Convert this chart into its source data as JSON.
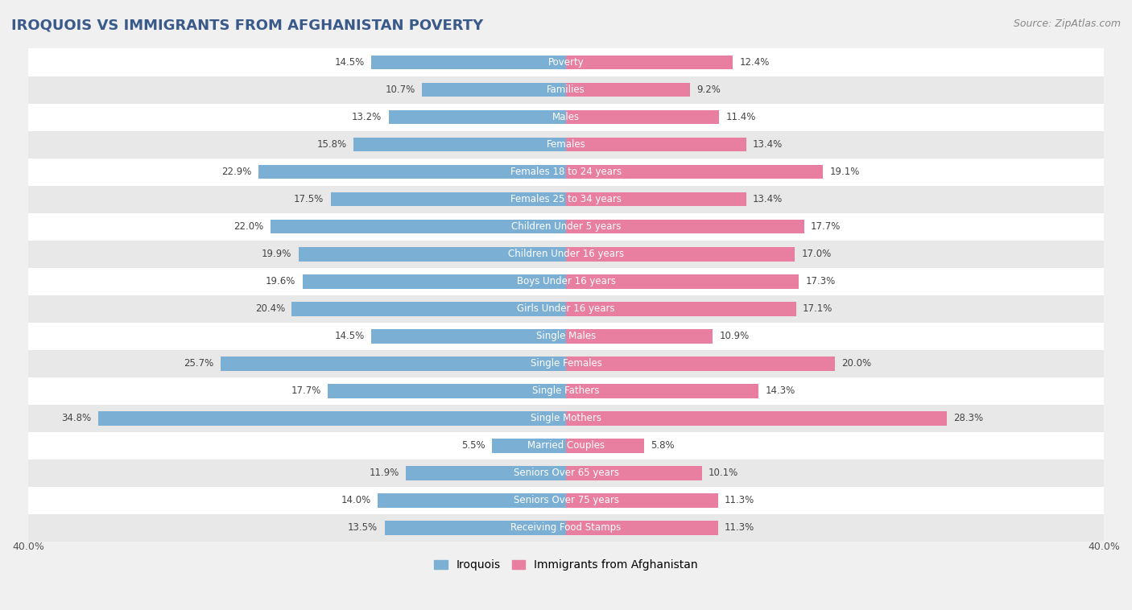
{
  "title": "IROQUOIS VS IMMIGRANTS FROM AFGHANISTAN POVERTY",
  "source": "Source: ZipAtlas.com",
  "categories": [
    "Poverty",
    "Families",
    "Males",
    "Females",
    "Females 18 to 24 years",
    "Females 25 to 34 years",
    "Children Under 5 years",
    "Children Under 16 years",
    "Boys Under 16 years",
    "Girls Under 16 years",
    "Single Males",
    "Single Females",
    "Single Fathers",
    "Single Mothers",
    "Married Couples",
    "Seniors Over 65 years",
    "Seniors Over 75 years",
    "Receiving Food Stamps"
  ],
  "iroquois": [
    14.5,
    10.7,
    13.2,
    15.8,
    22.9,
    17.5,
    22.0,
    19.9,
    19.6,
    20.4,
    14.5,
    25.7,
    17.7,
    34.8,
    5.5,
    11.9,
    14.0,
    13.5
  ],
  "afghanistan": [
    12.4,
    9.2,
    11.4,
    13.4,
    19.1,
    13.4,
    17.7,
    17.0,
    17.3,
    17.1,
    10.9,
    20.0,
    14.3,
    28.3,
    5.8,
    10.1,
    11.3,
    11.3
  ],
  "iroquois_color": "#7bafd4",
  "afghanistan_color": "#e87fa0",
  "background_color": "#f0f0f0",
  "row_color_even": "#ffffff",
  "row_color_odd": "#e8e8e8",
  "xlim": 40.0,
  "bar_height": 0.52,
  "legend_labels": [
    "Iroquois",
    "Immigrants from Afghanistan"
  ],
  "value_fontsize": 8.5,
  "cat_fontsize": 8.5,
  "title_fontsize": 13,
  "source_fontsize": 9
}
